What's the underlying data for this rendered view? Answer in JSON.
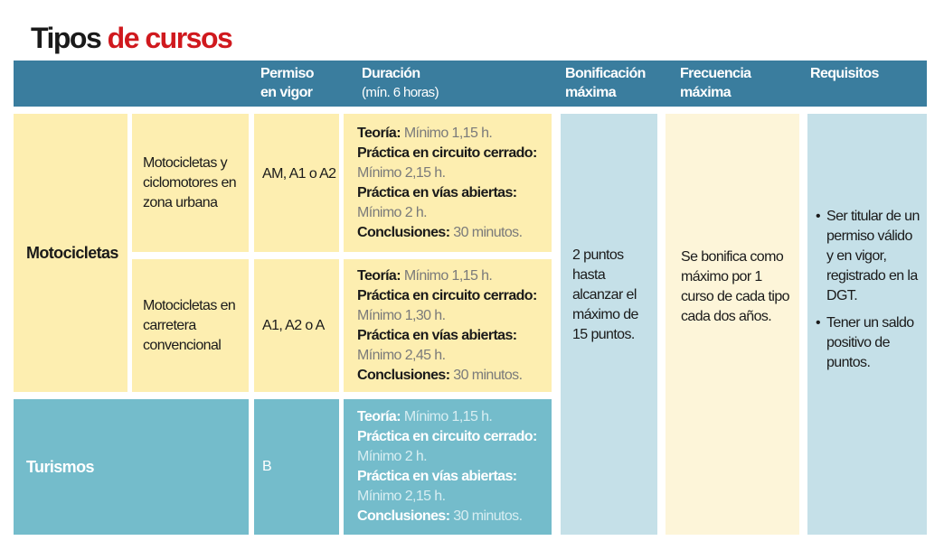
{
  "title": {
    "part1": "Tipos",
    "part2": "de cursos"
  },
  "colors": {
    "header": "#3a7d9e",
    "yellow": "#fdeeb0",
    "light_yellow": "#fdf5d9",
    "light_blue": "#c5e0e8",
    "teal": "#74bccb",
    "title_red": "#d0191e"
  },
  "header": {
    "permiso": "Permiso en vigor",
    "duracion": "Duración",
    "duracion_sub": "(mín. 6 horas)",
    "bonificacion": "Bonificación máxima",
    "frecuencia": "Frecuencia máxima",
    "requisitos": "Requisitos"
  },
  "rows": [
    {
      "group": "Motocicletas",
      "type": "Motocicletas y ciclomotores en zona urbana",
      "permiso": "AM, A1 o A2",
      "teoria": "Mínimo 1,15 h.",
      "circuito": "Mínimo 2,15 h.",
      "vias": "Mínimo 2 h.",
      "conclusiones": "30 minutos."
    },
    {
      "type": "Motocicletas en carretera convencional",
      "permiso": "A1, A2 o A",
      "teoria": "Mínimo 1,15 h.",
      "circuito": "Mínimo 1,30 h.",
      "vias": "Mínimo 2,45 h.",
      "conclusiones": "30 minutos."
    },
    {
      "group": "Turismos",
      "permiso": "B",
      "teoria": "Mínimo 1,15 h.",
      "circuito": "Mínimo 2 h.",
      "vias": "Mínimo 2,15 h.",
      "conclusiones": "30 minutos."
    }
  ],
  "labels": {
    "teoria": "Teoría:",
    "circuito": "Práctica en circuito cerrado:",
    "vias": "Práctica en vías abiertas:",
    "conclusiones": "Conclusiones:"
  },
  "bonificacion": "2 puntos hasta alcanzar el máximo de 15 puntos.",
  "frecuencia": "Se bonifica como máximo por 1 curso de cada tipo cada dos años.",
  "requisitos": [
    "Ser titular de un permiso válido y en vigor, registrado en la DGT.",
    "Tener un saldo positivo de puntos."
  ]
}
